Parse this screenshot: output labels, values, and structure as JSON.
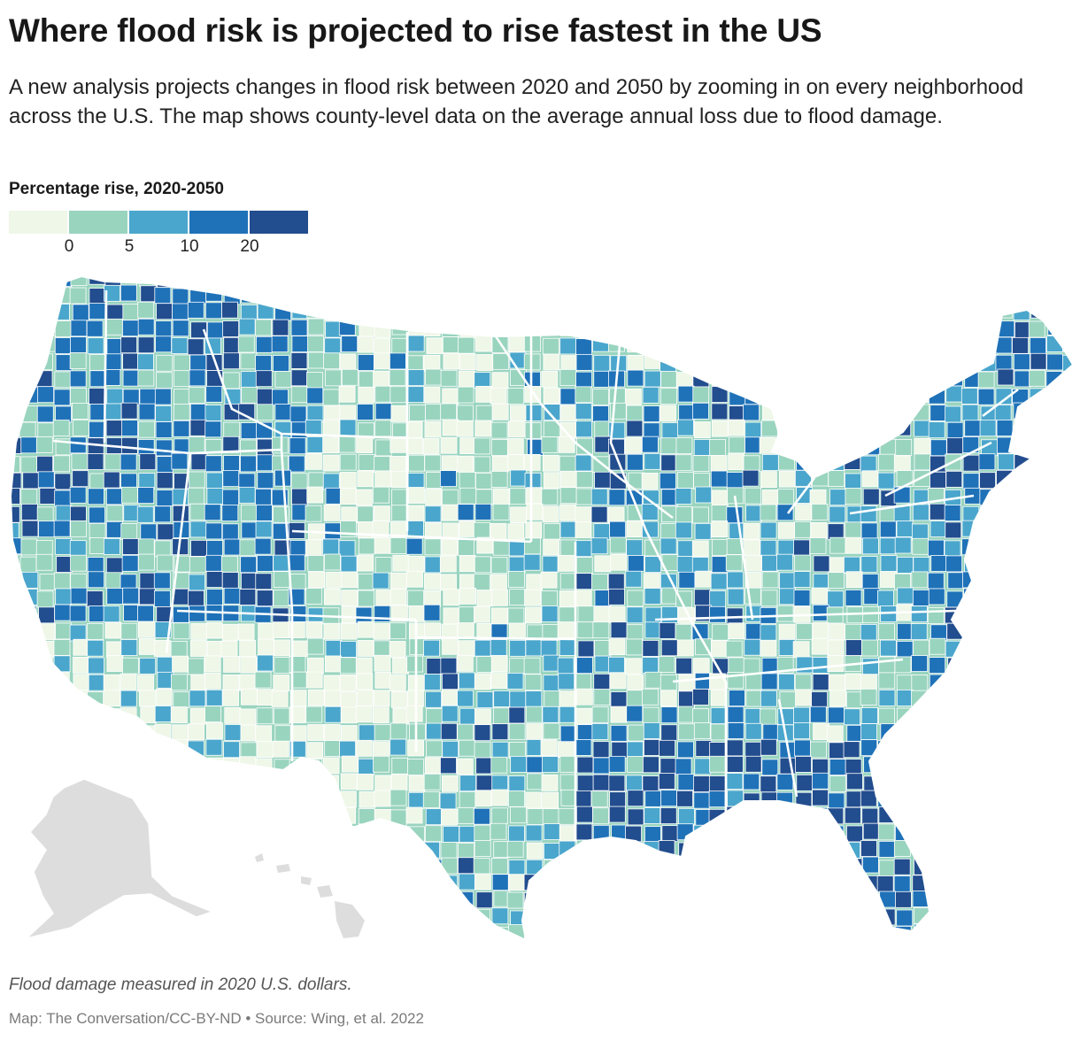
{
  "header": {
    "title": "Where flood risk is projected to rise fastest in the US",
    "subtitle": "A new analysis projects changes in flood risk between 2020 and 2050 by zooming in on every neighborhood across the U.S. The map shows county-level data on the average annual loss due to flood damage."
  },
  "legend": {
    "title": "Percentage rise, 2020-2050",
    "colors": [
      "#eff7e8",
      "#99d4bf",
      "#4aa6cc",
      "#1f72b8",
      "#224d8e"
    ],
    "ticks": [
      "0",
      "5",
      "10",
      "20"
    ]
  },
  "map": {
    "region": "Contiguous United States (counties), with Alaska and Hawaii inset",
    "inset_color": "#dddddd",
    "scheme": "choropleth, percentage rise in average annual flood loss"
  },
  "footer": {
    "note": "Flood damage measured in 2020 U.S. dollars.",
    "credit": "Map: The Conversation/CC-BY-ND • Source: Wing, et al. 2022"
  }
}
